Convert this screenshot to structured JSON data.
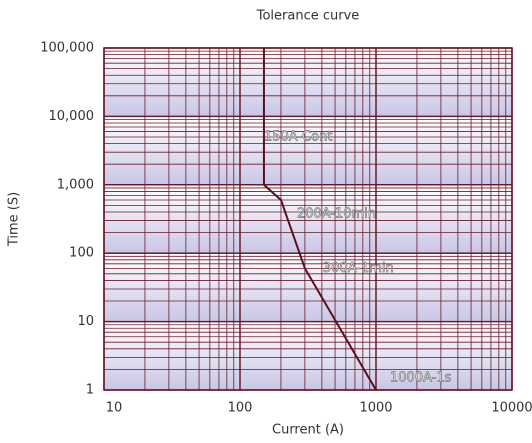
{
  "chart_data": {
    "type": "line",
    "title": "Tolerance curve",
    "x_label": "Current (A)",
    "y_label": "Time (S)",
    "log_x": true,
    "log_y": true,
    "grid": true,
    "minor_grid": true,
    "xlim": [
      10,
      10000
    ],
    "xticks": [
      10,
      100,
      1000,
      10000
    ],
    "ylim": [
      1,
      100000
    ],
    "yticks": [
      1,
      10,
      100,
      {
        "value": 1000,
        "label": "1,000"
      },
      {
        "value": 10000,
        "label": "10,000"
      },
      {
        "value": 100000,
        "label": "100,000"
      }
    ],
    "series": [
      {
        "color": "#5a1020",
        "x": [
          150,
          150,
          200,
          300,
          1000
        ],
        "values": [
          100000,
          1000,
          600,
          60,
          1
        ]
      }
    ],
    "annotations": [
      "150A-Cont",
      "200A-10min",
      "300A-1min",
      "1000A-1s"
    ]
  }
}
